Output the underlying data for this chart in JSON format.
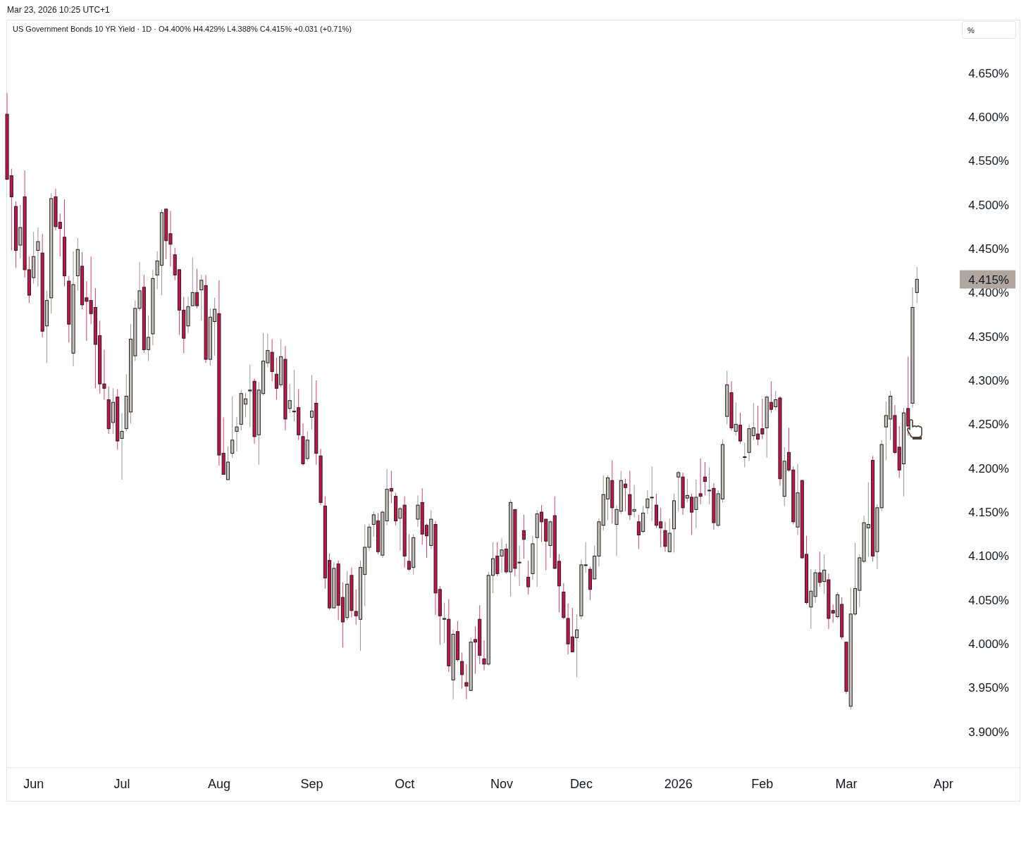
{
  "chart_data": {
    "type": "candlestick",
    "title": "US Government Bonds 10 YR Yield · 1D · O4.400% H4.429% L4.388% C4.415% +0.031 (+0.71%)",
    "annotations": [
      "Mar 23, 2026 10:25 UTC+1",
      "%",
      "4.415%"
    ],
    "categories": [
      null,
      null,
      null,
      null,
      null,
      null,
      "Jun",
      null,
      null,
      null,
      null,
      null,
      null,
      null,
      null,
      null,
      null,
      null,
      null,
      null,
      null,
      null,
      null,
      null,
      null,
      null,
      "Jul",
      null,
      null,
      null,
      null,
      null,
      null,
      null,
      null,
      null,
      null,
      null,
      null,
      null,
      null,
      null,
      null,
      null,
      null,
      null,
      null,
      null,
      "Aug",
      null,
      null,
      null,
      null,
      null,
      null,
      null,
      null,
      null,
      null,
      null,
      null,
      null,
      null,
      null,
      null,
      null,
      null,
      null,
      null,
      "Sep",
      null,
      null,
      null,
      null,
      null,
      null,
      null,
      null,
      null,
      null,
      null,
      null,
      null,
      null,
      null,
      null,
      null,
      null,
      null,
      null,
      "Oct",
      null,
      null,
      null,
      null,
      null,
      null,
      null,
      null,
      null,
      null,
      null,
      null,
      null,
      null,
      null,
      null,
      null,
      null,
      null,
      null,
      null,
      "Nov",
      null,
      null,
      null,
      null,
      null,
      null,
      null,
      null,
      null,
      null,
      null,
      null,
      null,
      null,
      null,
      null,
      null,
      "Dec",
      null,
      null,
      null,
      null,
      null,
      null,
      null,
      null,
      null,
      null,
      null,
      null,
      null,
      null,
      null,
      null,
      null,
      null,
      null,
      null,
      null,
      "2026",
      null,
      null,
      null,
      null,
      null,
      null,
      null,
      null,
      null,
      null,
      null,
      null,
      null,
      null,
      null,
      null,
      null,
      null,
      "Feb",
      null,
      null,
      null,
      null,
      null,
      null,
      null,
      null,
      null,
      null,
      null,
      null,
      null,
      null,
      null,
      null,
      null,
      null,
      "Mar",
      null,
      null,
      null,
      null,
      null,
      null,
      null,
      null,
      null,
      null,
      null,
      null,
      null,
      null,
      null,
      null,
      null,
      null,
      null,
      null,
      null,
      "Apr"
    ],
    "ohlc": [
      [
        4.603,
        4.627,
        4.528,
        4.529
      ],
      [
        4.533,
        4.541,
        4.448,
        4.509
      ],
      [
        4.498,
        4.504,
        4.428,
        4.448
      ],
      [
        4.454,
        4.5,
        4.439,
        4.474
      ],
      [
        4.509,
        4.539,
        4.417,
        4.426
      ],
      [
        4.426,
        4.441,
        4.388,
        4.397
      ],
      [
        4.417,
        4.469,
        4.41,
        4.441
      ],
      [
        4.448,
        4.474,
        4.407,
        4.458
      ],
      [
        4.445,
        4.467,
        4.349,
        4.356
      ],
      [
        4.362,
        4.402,
        4.32,
        4.391
      ],
      [
        4.394,
        4.513,
        4.376,
        4.507
      ],
      [
        4.509,
        4.518,
        4.471,
        4.475
      ],
      [
        4.48,
        4.49,
        4.441,
        4.473
      ],
      [
        4.463,
        4.506,
        4.407,
        4.419
      ],
      [
        4.413,
        4.419,
        4.343,
        4.364
      ],
      [
        4.331,
        4.447,
        4.316,
        4.409
      ],
      [
        4.419,
        4.462,
        4.402,
        4.449
      ],
      [
        4.43,
        4.446,
        4.381,
        4.386
      ],
      [
        4.394,
        4.413,
        4.345,
        4.39
      ],
      [
        4.391,
        4.441,
        4.364,
        4.376
      ],
      [
        4.383,
        4.405,
        4.291,
        4.341
      ],
      [
        4.351,
        4.368,
        4.285,
        4.296
      ],
      [
        4.296,
        4.335,
        4.278,
        4.291
      ],
      [
        4.278,
        4.293,
        4.239,
        4.245
      ],
      [
        4.252,
        4.291,
        4.239,
        4.275
      ],
      [
        4.281,
        4.29,
        4.221,
        4.231
      ],
      [
        4.234,
        4.263,
        4.187,
        4.242
      ],
      [
        4.245,
        4.307,
        4.242,
        4.282
      ],
      [
        4.264,
        4.364,
        4.251,
        4.347
      ],
      [
        4.328,
        4.391,
        4.322,
        4.382
      ],
      [
        4.382,
        4.435,
        4.379,
        4.402
      ],
      [
        4.406,
        4.42,
        4.331,
        4.335
      ],
      [
        4.335,
        4.374,
        4.322,
        4.349
      ],
      [
        4.353,
        4.426,
        4.34,
        4.416
      ],
      [
        4.42,
        4.447,
        4.404,
        4.436
      ],
      [
        4.431,
        4.495,
        4.397,
        4.491
      ],
      [
        4.495,
        4.496,
        4.438,
        4.459
      ],
      [
        4.467,
        4.493,
        4.43,
        4.455
      ],
      [
        4.443,
        4.451,
        4.414,
        4.42
      ],
      [
        4.426,
        4.427,
        4.352,
        4.38
      ],
      [
        4.38,
        4.395,
        4.331,
        4.348
      ],
      [
        4.362,
        4.395,
        4.354,
        4.384
      ],
      [
        4.385,
        4.44,
        4.385,
        4.4
      ],
      [
        4.4,
        4.427,
        4.382,
        4.385
      ],
      [
        4.403,
        4.42,
        4.368,
        4.414
      ],
      [
        4.408,
        4.42,
        4.32,
        4.324
      ],
      [
        4.324,
        4.382,
        4.317,
        4.372
      ],
      [
        4.367,
        4.394,
        4.328,
        4.381
      ],
      [
        4.376,
        4.414,
        4.203,
        4.215
      ],
      [
        4.217,
        4.258,
        4.193,
        4.193
      ],
      [
        4.187,
        4.225,
        4.187,
        4.207
      ],
      [
        4.217,
        4.282,
        4.212,
        4.232
      ],
      [
        4.242,
        4.258,
        4.219,
        4.247
      ],
      [
        4.25,
        4.289,
        4.243,
        4.285
      ],
      [
        4.273,
        4.286,
        4.258,
        4.279
      ],
      [
        4.288,
        4.318,
        4.247,
        4.289
      ],
      [
        4.299,
        4.302,
        4.228,
        4.236
      ],
      [
        4.238,
        4.298,
        4.204,
        4.289
      ],
      [
        4.285,
        4.354,
        4.283,
        4.322
      ],
      [
        4.32,
        4.353,
        4.315,
        4.334
      ],
      [
        4.332,
        4.347,
        4.299,
        4.31
      ],
      [
        4.307,
        4.326,
        4.278,
        4.291
      ],
      [
        4.295,
        4.347,
        4.292,
        4.327
      ],
      [
        4.324,
        4.339,
        4.243,
        4.256
      ],
      [
        4.268,
        4.296,
        4.263,
        4.277
      ],
      [
        4.265,
        4.312,
        4.253,
        4.265
      ],
      [
        4.269,
        4.29,
        4.232,
        4.238
      ],
      [
        4.236,
        4.251,
        4.203,
        4.205
      ],
      [
        4.211,
        4.242,
        4.208,
        4.232
      ],
      [
        4.258,
        4.306,
        4.244,
        4.265
      ],
      [
        4.274,
        4.3,
        4.204,
        4.217
      ],
      [
        4.214,
        4.222,
        4.158,
        4.161
      ],
      [
        4.157,
        4.168,
        4.063,
        4.075
      ],
      [
        4.095,
        4.103,
        4.039,
        4.041
      ],
      [
        4.041,
        4.093,
        4.04,
        4.086
      ],
      [
        4.091,
        4.095,
        4.027,
        4.044
      ],
      [
        4.053,
        4.07,
        3.996,
        4.025
      ],
      [
        4.03,
        4.083,
        4.027,
        4.068
      ],
      [
        4.078,
        4.087,
        4.03,
        4.038
      ],
      [
        4.037,
        4.062,
        4.022,
        4.032
      ],
      [
        4.028,
        4.095,
        3.992,
        4.087
      ],
      [
        4.079,
        4.136,
        4.043,
        4.11
      ],
      [
        4.11,
        4.137,
        4.106,
        4.133
      ],
      [
        4.136,
        4.151,
        4.122,
        4.147
      ],
      [
        4.14,
        4.149,
        4.102,
        4.105
      ],
      [
        4.101,
        4.152,
        4.098,
        4.15
      ],
      [
        4.14,
        4.199,
        4.135,
        4.176
      ],
      [
        4.177,
        4.197,
        4.16,
        4.174
      ],
      [
        4.168,
        4.172,
        4.135,
        4.14
      ],
      [
        4.143,
        4.156,
        4.106,
        4.154
      ],
      [
        4.158,
        4.168,
        4.087,
        4.1
      ],
      [
        4.094,
        4.125,
        4.083,
        4.085
      ],
      [
        4.087,
        4.125,
        4.079,
        4.121
      ],
      [
        4.142,
        4.169,
        4.133,
        4.158
      ],
      [
        4.161,
        4.177,
        4.113,
        4.125
      ],
      [
        4.135,
        4.137,
        4.098,
        4.123
      ],
      [
        4.112,
        4.152,
        4.108,
        4.142
      ],
      [
        4.136,
        4.14,
        4.033,
        4.058
      ],
      [
        4.062,
        4.066,
        3.999,
        4.032
      ],
      [
        4.028,
        4.047,
        4.001,
        4.029
      ],
      [
        4.028,
        4.051,
        3.968,
        3.975
      ],
      [
        3.959,
        4.016,
        3.937,
        4.011
      ],
      [
        4.014,
        4.026,
        3.98,
        3.982
      ],
      [
        3.98,
        3.99,
        3.949,
        3.965
      ],
      [
        3.956,
        3.977,
        3.937,
        3.952
      ],
      [
        3.947,
        4.007,
        3.946,
        4.002
      ],
      [
        4.005,
        4.02,
        3.966,
        4.002
      ],
      [
        4.028,
        4.044,
        3.977,
        3.987
      ],
      [
        3.983,
        4.004,
        3.97,
        3.977
      ],
      [
        3.977,
        4.082,
        3.975,
        4.078
      ],
      [
        4.078,
        4.116,
        4.058,
        4.097
      ],
      [
        4.1,
        4.116,
        4.077,
        4.08
      ],
      [
        4.1,
        4.12,
        4.081,
        4.107
      ],
      [
        4.108,
        4.114,
        4.08,
        4.082
      ],
      [
        4.082,
        4.164,
        4.054,
        4.161
      ],
      [
        4.153,
        4.153,
        4.077,
        4.086
      ],
      [
        4.093,
        4.112,
        4.066,
        4.093
      ],
      [
        4.129,
        4.147,
        4.097,
        4.119
      ],
      [
        4.076,
        4.095,
        4.056,
        4.065
      ],
      [
        4.08,
        4.123,
        4.073,
        4.114
      ],
      [
        4.121,
        4.152,
        4.065,
        4.148
      ],
      [
        4.15,
        4.158,
        4.116,
        4.139
      ],
      [
        4.142,
        4.142,
        4.084,
        4.117
      ],
      [
        4.112,
        4.141,
        4.098,
        4.139
      ],
      [
        4.146,
        4.168,
        4.085,
        4.086
      ],
      [
        4.094,
        4.102,
        4.036,
        4.066
      ],
      [
        4.059,
        4.069,
        4.028,
        4.03
      ],
      [
        4.029,
        4.046,
        3.988,
        4.0
      ],
      [
        4.008,
        4.041,
        3.991,
        3.991
      ],
      [
        4.007,
        4.034,
        3.962,
        4.016
      ],
      [
        4.032,
        4.096,
        4.028,
        4.09
      ],
      [
        4.09,
        4.116,
        4.081,
        4.09
      ],
      [
        4.085,
        4.088,
        4.05,
        4.062
      ],
      [
        4.074,
        4.112,
        4.073,
        4.1
      ],
      [
        4.1,
        4.143,
        4.088,
        4.139
      ],
      [
        4.135,
        4.192,
        4.129,
        4.17
      ],
      [
        4.165,
        4.192,
        4.141,
        4.189
      ],
      [
        4.186,
        4.209,
        4.137,
        4.155
      ],
      [
        4.136,
        4.158,
        4.1,
        4.153
      ],
      [
        4.151,
        4.197,
        4.148,
        4.186
      ],
      [
        4.182,
        4.188,
        4.151,
        4.178
      ],
      [
        4.17,
        4.197,
        4.141,
        4.147
      ],
      [
        4.151,
        4.181,
        4.144,
        4.153
      ],
      [
        4.139,
        4.147,
        4.108,
        4.124
      ],
      [
        4.128,
        4.157,
        4.126,
        4.149
      ],
      [
        4.155,
        4.175,
        4.148,
        4.165
      ],
      [
        4.167,
        4.202,
        4.14,
        4.167
      ],
      [
        4.158,
        4.171,
        4.132,
        4.135
      ],
      [
        4.139,
        4.155,
        4.11,
        4.132
      ],
      [
        4.129,
        4.139,
        4.105,
        4.111
      ],
      [
        4.105,
        4.143,
        4.104,
        4.126
      ],
      [
        4.131,
        4.171,
        4.104,
        4.163
      ],
      [
        4.19,
        4.197,
        4.151,
        4.195
      ],
      [
        4.19,
        4.195,
        4.147,
        4.155
      ],
      [
        4.166,
        4.188,
        4.161,
        4.169
      ],
      [
        4.167,
        4.171,
        4.124,
        4.15
      ],
      [
        4.153,
        4.187,
        4.132,
        4.167
      ],
      [
        4.171,
        4.211,
        4.159,
        4.168
      ],
      [
        4.19,
        4.207,
        4.169,
        4.185
      ],
      [
        4.175,
        4.201,
        4.159,
        4.175
      ],
      [
        4.177,
        4.183,
        4.13,
        4.138
      ],
      [
        4.135,
        4.175,
        4.133,
        4.171
      ],
      [
        4.165,
        4.233,
        4.161,
        4.227
      ],
      [
        4.259,
        4.311,
        4.25,
        4.295
      ],
      [
        4.286,
        4.299,
        4.243,
        4.246
      ],
      [
        4.242,
        4.275,
        4.237,
        4.25
      ],
      [
        4.249,
        4.263,
        4.228,
        4.231
      ],
      [
        4.213,
        4.229,
        4.201,
        4.213
      ],
      [
        4.218,
        4.25,
        4.208,
        4.245
      ],
      [
        4.237,
        4.274,
        4.232,
        4.246
      ],
      [
        4.239,
        4.271,
        4.226,
        4.233
      ],
      [
        4.245,
        4.279,
        4.233,
        4.239
      ],
      [
        4.246,
        4.283,
        4.212,
        4.281
      ],
      [
        4.275,
        4.299,
        4.263,
        4.267
      ],
      [
        4.27,
        4.288,
        4.266,
        4.278
      ],
      [
        4.28,
        4.282,
        4.18,
        4.188
      ],
      [
        4.168,
        4.224,
        4.157,
        4.208
      ],
      [
        4.218,
        4.246,
        4.196,
        4.198
      ],
      [
        4.198,
        4.202,
        4.136,
        4.139
      ],
      [
        4.133,
        4.205,
        4.124,
        4.172
      ],
      [
        4.186,
        4.187,
        4.097,
        4.098
      ],
      [
        4.102,
        4.123,
        4.045,
        4.047
      ],
      [
        4.042,
        4.085,
        4.017,
        4.06
      ],
      [
        4.054,
        4.085,
        4.047,
        4.081
      ],
      [
        4.081,
        4.105,
        4.065,
        4.07
      ],
      [
        4.071,
        4.102,
        4.057,
        4.084
      ],
      [
        4.073,
        4.08,
        4.017,
        4.029
      ],
      [
        4.038,
        4.045,
        4.024,
        4.035
      ],
      [
        4.031,
        4.059,
        4.029,
        4.056
      ],
      [
        4.045,
        4.053,
        4.005,
        4.008
      ],
      [
        4.002,
        4.002,
        3.943,
        3.946
      ],
      [
        3.929,
        4.064,
        3.925,
        4.034
      ],
      [
        4.034,
        4.115,
        4.032,
        4.063
      ],
      [
        4.061,
        4.102,
        4.042,
        4.098
      ],
      [
        4.094,
        4.146,
        4.092,
        4.138
      ],
      [
        4.132,
        4.184,
        4.099,
        4.136
      ],
      [
        4.209,
        4.214,
        4.094,
        4.1
      ],
      [
        4.105,
        4.159,
        4.085,
        4.155
      ],
      [
        4.155,
        4.232,
        4.151,
        4.227
      ],
      [
        4.247,
        4.276,
        4.209,
        4.26
      ],
      [
        4.256,
        4.288,
        4.232,
        4.282
      ],
      [
        4.26,
        4.272,
        4.216,
        4.218
      ],
      [
        4.224,
        4.248,
        4.189,
        4.198
      ],
      [
        4.205,
        4.269,
        4.168,
        4.263
      ],
      [
        4.268,
        4.327,
        4.237,
        4.248
      ],
      [
        4.274,
        4.406,
        4.269,
        4.383
      ],
      [
        4.4,
        4.429,
        4.388,
        4.415
      ],
      null,
      null,
      null,
      null,
      null,
      null
    ],
    "ylim": [
      3.859,
      4.709
    ],
    "yticks": [
      {
        "value": 3.9,
        "label": "3.900%"
      },
      {
        "value": 3.95,
        "label": "3.950%"
      },
      {
        "value": 4.0,
        "label": "4.000%"
      },
      {
        "value": 4.05,
        "label": "4.050%"
      },
      {
        "value": 4.1,
        "label": "4.100%"
      },
      {
        "value": 4.15,
        "label": "4.150%"
      },
      {
        "value": 4.2,
        "label": "4.200%"
      },
      {
        "value": 4.25,
        "label": "4.250%"
      },
      {
        "value": 4.3,
        "label": "4.300%"
      },
      {
        "value": 4.35,
        "label": "4.350%"
      },
      {
        "value": 4.4,
        "label": "4.400%"
      },
      {
        "value": 4.45,
        "label": "4.450%"
      },
      {
        "value": 4.5,
        "label": "4.500%"
      },
      {
        "value": 4.55,
        "label": "4.550%"
      },
      {
        "value": 4.6,
        "label": "4.600%"
      },
      {
        "value": 4.65,
        "label": "4.650%"
      }
    ]
  }
}
